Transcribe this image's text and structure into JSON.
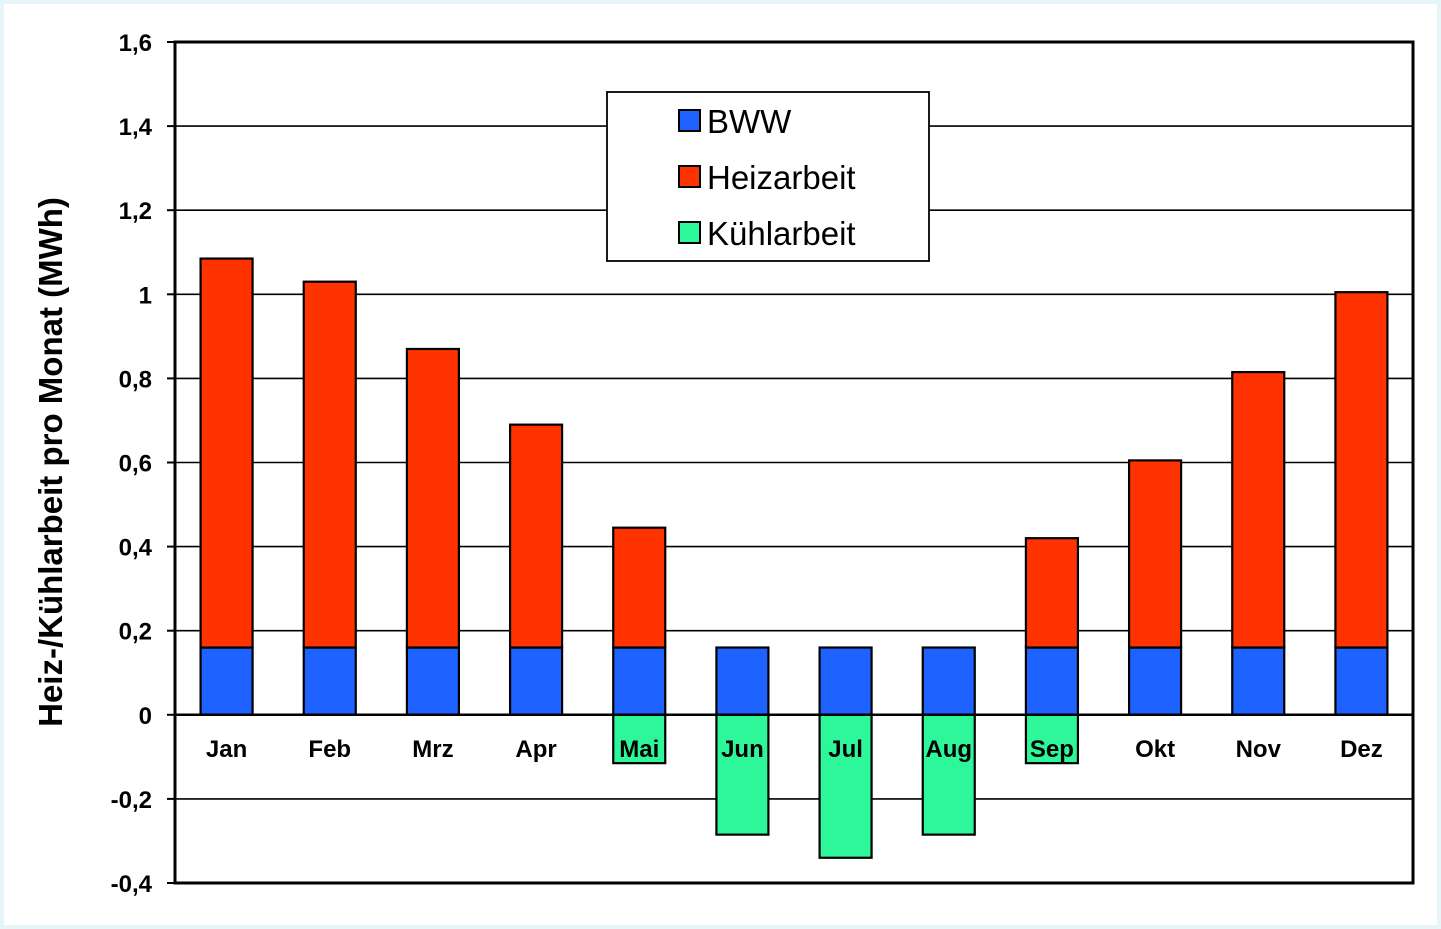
{
  "chart_data": {
    "type": "bar",
    "stacked": true,
    "title": "",
    "xlabel": "",
    "ylabel": "Heiz-/Kühlarbeit pro Monat (MWh)",
    "ylim": [
      -0.4,
      1.6
    ],
    "yticks": [
      -0.4,
      -0.2,
      0,
      0.2,
      0.4,
      0.6,
      0.8,
      1,
      1.2,
      1.4,
      1.6
    ],
    "ytick_labels": [
      "-0,4",
      "-0,2",
      "0",
      "0,2",
      "0,4",
      "0,6",
      "0,8",
      "1",
      "1,2",
      "1,4",
      "1,6"
    ],
    "grid": "horizontal",
    "legend_position": "top-center",
    "categories": [
      "Jan",
      "Feb",
      "Mrz",
      "Apr",
      "Mai",
      "Jun",
      "Jul",
      "Aug",
      "Sep",
      "Okt",
      "Nov",
      "Dez"
    ],
    "series": [
      {
        "name": "BWW",
        "color": "#1e63ff",
        "values": [
          0.16,
          0.16,
          0.16,
          0.16,
          0.16,
          0.16,
          0.16,
          0.16,
          0.16,
          0.16,
          0.16,
          0.16
        ]
      },
      {
        "name": "Heizarbeit",
        "color": "#ff3300",
        "values": [
          0.925,
          0.87,
          0.71,
          0.53,
          0.285,
          0,
          0,
          0,
          0.26,
          0.445,
          0.655,
          0.845
        ]
      },
      {
        "name": "Kühlarbeit",
        "color": "#2ef79a",
        "values": [
          0,
          0,
          0,
          0,
          -0.115,
          -0.285,
          -0.34,
          -0.285,
          -0.115,
          0,
          0,
          0
        ]
      }
    ]
  }
}
